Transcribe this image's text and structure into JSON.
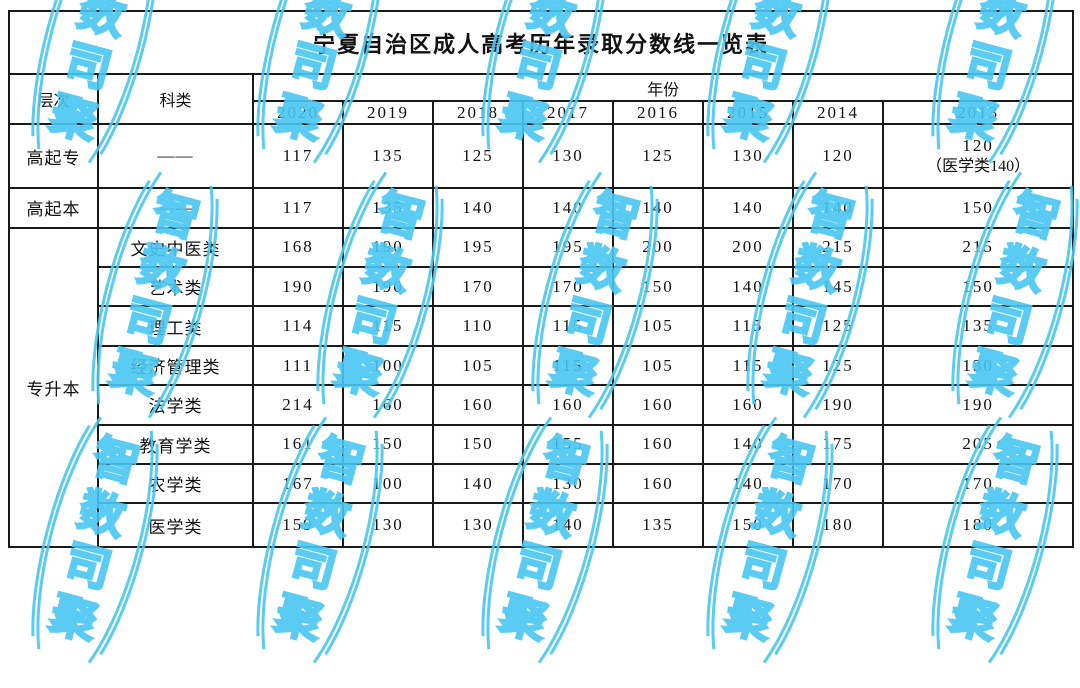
{
  "title": "宁夏自治区成人高考历年录取分数线一览表",
  "table": {
    "headers": {
      "level": "层次",
      "category": "科类",
      "year_group": "年份"
    },
    "years": [
      "2020",
      "2019",
      "2018",
      "2017",
      "2016",
      "2015",
      "2014",
      "2013"
    ],
    "rows": [
      {
        "level": "高起专",
        "level_rowspan": 1,
        "category": "——",
        "values": [
          "117",
          "135",
          "125",
          "130",
          "125",
          "130",
          "120",
          "120"
        ],
        "last_note": "（医学类140）"
      },
      {
        "level": "高起本",
        "level_rowspan": 1,
        "category": "——",
        "values": [
          "117",
          "135",
          "140",
          "140",
          "140",
          "140",
          "140",
          "150"
        ]
      },
      {
        "level": "专升本",
        "level_rowspan": 8,
        "category": "文史中医类",
        "values": [
          "168",
          "190",
          "195",
          "195",
          "200",
          "200",
          "215",
          "215"
        ]
      },
      {
        "category": "艺术类",
        "values": [
          "190",
          "190",
          "170",
          "170",
          "150",
          "140",
          "145",
          "150"
        ]
      },
      {
        "category": "理工类",
        "values": [
          "114",
          "115",
          "110",
          "115",
          "105",
          "115",
          "125",
          "135"
        ]
      },
      {
        "category": "经济管理类",
        "values": [
          "111",
          "100",
          "105",
          "115",
          "105",
          "115",
          "125",
          "130"
        ]
      },
      {
        "category": "法学类",
        "values": [
          "214",
          "160",
          "160",
          "160",
          "160",
          "160",
          "190",
          "190"
        ]
      },
      {
        "category": "教育学类",
        "values": [
          "161",
          "150",
          "150",
          "155",
          "160",
          "140",
          "175",
          "205"
        ]
      },
      {
        "category": "农学类",
        "values": [
          "167",
          "100",
          "140",
          "130",
          "160",
          "140",
          "170",
          "170"
        ]
      },
      {
        "category": "医学类",
        "values": [
          "159",
          "130",
          "130",
          "140",
          "135",
          "150",
          "180",
          "180"
        ]
      }
    ]
  },
  "watermark": {
    "characters": "智数司聚",
    "left_paren": "（",
    "right_paren": "）",
    "color": "#49c6f2"
  }
}
